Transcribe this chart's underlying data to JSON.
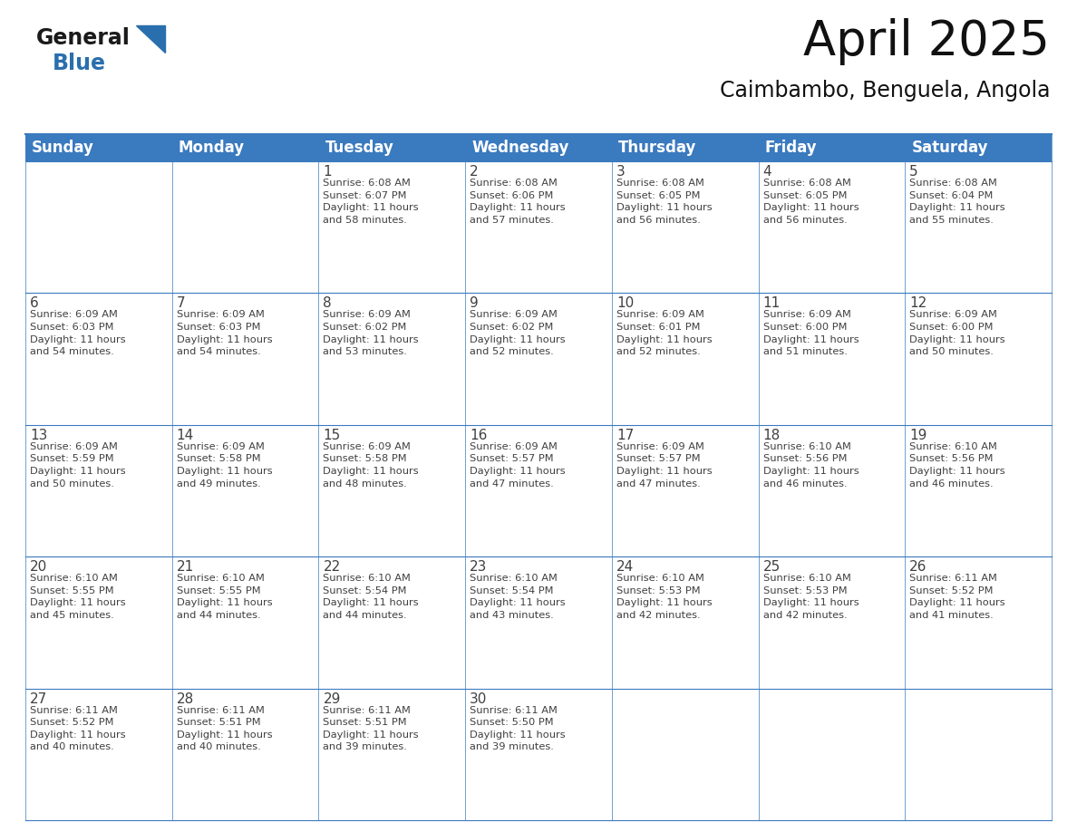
{
  "title": "April 2025",
  "subtitle": "Caimbambo, Benguela, Angola",
  "header_bg_color": "#3a7abf",
  "header_text_color": "#ffffff",
  "cell_bg_color": "#ffffff",
  "border_color": "#3a7abf",
  "text_color": "#404040",
  "days_of_week": [
    "Sunday",
    "Monday",
    "Tuesday",
    "Wednesday",
    "Thursday",
    "Friday",
    "Saturday"
  ],
  "title_fontsize": 38,
  "subtitle_fontsize": 17,
  "header_fontsize": 12,
  "cell_fontsize": 8.2,
  "day_num_fontsize": 11,
  "logo_general_color": "#1a1a1a",
  "logo_blue_color": "#2a6fad",
  "calendar": [
    [
      {
        "day": null,
        "info": ""
      },
      {
        "day": null,
        "info": ""
      },
      {
        "day": 1,
        "info": "Sunrise: 6:08 AM\nSunset: 6:07 PM\nDaylight: 11 hours\nand 58 minutes."
      },
      {
        "day": 2,
        "info": "Sunrise: 6:08 AM\nSunset: 6:06 PM\nDaylight: 11 hours\nand 57 minutes."
      },
      {
        "day": 3,
        "info": "Sunrise: 6:08 AM\nSunset: 6:05 PM\nDaylight: 11 hours\nand 56 minutes."
      },
      {
        "day": 4,
        "info": "Sunrise: 6:08 AM\nSunset: 6:05 PM\nDaylight: 11 hours\nand 56 minutes."
      },
      {
        "day": 5,
        "info": "Sunrise: 6:08 AM\nSunset: 6:04 PM\nDaylight: 11 hours\nand 55 minutes."
      }
    ],
    [
      {
        "day": 6,
        "info": "Sunrise: 6:09 AM\nSunset: 6:03 PM\nDaylight: 11 hours\nand 54 minutes."
      },
      {
        "day": 7,
        "info": "Sunrise: 6:09 AM\nSunset: 6:03 PM\nDaylight: 11 hours\nand 54 minutes."
      },
      {
        "day": 8,
        "info": "Sunrise: 6:09 AM\nSunset: 6:02 PM\nDaylight: 11 hours\nand 53 minutes."
      },
      {
        "day": 9,
        "info": "Sunrise: 6:09 AM\nSunset: 6:02 PM\nDaylight: 11 hours\nand 52 minutes."
      },
      {
        "day": 10,
        "info": "Sunrise: 6:09 AM\nSunset: 6:01 PM\nDaylight: 11 hours\nand 52 minutes."
      },
      {
        "day": 11,
        "info": "Sunrise: 6:09 AM\nSunset: 6:00 PM\nDaylight: 11 hours\nand 51 minutes."
      },
      {
        "day": 12,
        "info": "Sunrise: 6:09 AM\nSunset: 6:00 PM\nDaylight: 11 hours\nand 50 minutes."
      }
    ],
    [
      {
        "day": 13,
        "info": "Sunrise: 6:09 AM\nSunset: 5:59 PM\nDaylight: 11 hours\nand 50 minutes."
      },
      {
        "day": 14,
        "info": "Sunrise: 6:09 AM\nSunset: 5:58 PM\nDaylight: 11 hours\nand 49 minutes."
      },
      {
        "day": 15,
        "info": "Sunrise: 6:09 AM\nSunset: 5:58 PM\nDaylight: 11 hours\nand 48 minutes."
      },
      {
        "day": 16,
        "info": "Sunrise: 6:09 AM\nSunset: 5:57 PM\nDaylight: 11 hours\nand 47 minutes."
      },
      {
        "day": 17,
        "info": "Sunrise: 6:09 AM\nSunset: 5:57 PM\nDaylight: 11 hours\nand 47 minutes."
      },
      {
        "day": 18,
        "info": "Sunrise: 6:10 AM\nSunset: 5:56 PM\nDaylight: 11 hours\nand 46 minutes."
      },
      {
        "day": 19,
        "info": "Sunrise: 6:10 AM\nSunset: 5:56 PM\nDaylight: 11 hours\nand 46 minutes."
      }
    ],
    [
      {
        "day": 20,
        "info": "Sunrise: 6:10 AM\nSunset: 5:55 PM\nDaylight: 11 hours\nand 45 minutes."
      },
      {
        "day": 21,
        "info": "Sunrise: 6:10 AM\nSunset: 5:55 PM\nDaylight: 11 hours\nand 44 minutes."
      },
      {
        "day": 22,
        "info": "Sunrise: 6:10 AM\nSunset: 5:54 PM\nDaylight: 11 hours\nand 44 minutes."
      },
      {
        "day": 23,
        "info": "Sunrise: 6:10 AM\nSunset: 5:54 PM\nDaylight: 11 hours\nand 43 minutes."
      },
      {
        "day": 24,
        "info": "Sunrise: 6:10 AM\nSunset: 5:53 PM\nDaylight: 11 hours\nand 42 minutes."
      },
      {
        "day": 25,
        "info": "Sunrise: 6:10 AM\nSunset: 5:53 PM\nDaylight: 11 hours\nand 42 minutes."
      },
      {
        "day": 26,
        "info": "Sunrise: 6:11 AM\nSunset: 5:52 PM\nDaylight: 11 hours\nand 41 minutes."
      }
    ],
    [
      {
        "day": 27,
        "info": "Sunrise: 6:11 AM\nSunset: 5:52 PM\nDaylight: 11 hours\nand 40 minutes."
      },
      {
        "day": 28,
        "info": "Sunrise: 6:11 AM\nSunset: 5:51 PM\nDaylight: 11 hours\nand 40 minutes."
      },
      {
        "day": 29,
        "info": "Sunrise: 6:11 AM\nSunset: 5:51 PM\nDaylight: 11 hours\nand 39 minutes."
      },
      {
        "day": 30,
        "info": "Sunrise: 6:11 AM\nSunset: 5:50 PM\nDaylight: 11 hours\nand 39 minutes."
      },
      {
        "day": null,
        "info": ""
      },
      {
        "day": null,
        "info": ""
      },
      {
        "day": null,
        "info": ""
      }
    ]
  ]
}
